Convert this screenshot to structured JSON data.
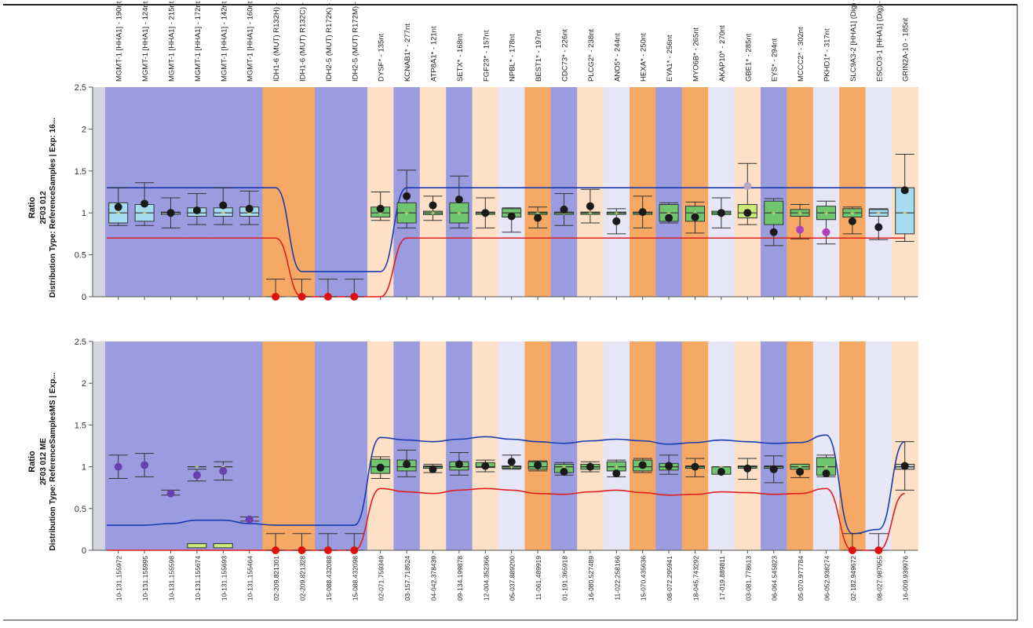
{
  "colors": {
    "blue_band": "#9b9be0",
    "orange_band": "#f6a964",
    "light_orange_band": "#fde0c5",
    "lavender_band": "#e6e6f7",
    "grey_band": "#d3d6db",
    "upper_line": "#1a3bb0",
    "lower_line": "#dd1f1f",
    "dot": "#1a1a1a",
    "zero_dot": "#e01010",
    "box_green": "#6fc66f",
    "box_blue": "#a6dcef",
    "box_yellow": "#c9ea7a",
    "purple_dot": "#6a3fb0",
    "magenta_dot": "#b040b8"
  },
  "chart_data": [
    {
      "type": "box",
      "ylabel": [
        "Ratio",
        "2F03 012",
        "Distribution Type: ReferenceSamples | Exp: 16..."
      ],
      "ylim": [
        0,
        2.5
      ],
      "yticks": [
        "0",
        "0.5",
        "1",
        "1.5",
        "2",
        "2.5"
      ],
      "probe_labels": [
        "MGMT-1 [HHA1] - 190nt",
        "MGMT-1 [HHA1] - 124nt",
        "MGMT-1 [HHA1] - 215nt",
        "MGMT-1 [HHA1] - 172nt",
        "MGMT-1 [HHA1] - 142nt",
        "MGMT-1 [HHA1] - 160nt",
        "IDH1-6 (MUT) R132H) - 203nt",
        "IDH1-6 (MUT) R132C) - 225nt",
        "IDH2-5 (MUT) R172K) - 145nt",
        "IDH2-5 (MUT) R172M) - 151nt",
        "DYSF* - 135nt",
        "KCNAB1* - 277nt",
        "ATP8A1* - 121nt",
        "SETX* - 168nt",
        "FGF23* - 157nt",
        "NPBL* - 178nt",
        "BEST1* - 197nt",
        "CDC73* - 226nt",
        "PLCG2* - 238nt",
        "ANO5* - 244nt",
        "HEXA* - 250nt",
        "EYA1* - 256nt",
        "MYO6B* - 265nt",
        "AKAP10* - 270nt",
        "GBE1* - 285nt",
        "EYS* - 294nt",
        "MCCC2* - 302nt",
        "PKHD1* - 317nt",
        "SLC9A3-2 [HHA1] (Dig) - 208nt",
        "ESCO3-1 [HHA1] (Dig) - 310nt",
        "GRIN2A-10 - 185nt"
      ],
      "bands": [
        "grey",
        "blue",
        "blue",
        "blue",
        "blue",
        "blue",
        "blue",
        "orange",
        "orange",
        "blue",
        "blue",
        "light_orange",
        "blue",
        "light_orange",
        "blue",
        "light_orange",
        "lavender",
        "orange",
        "blue",
        "light_orange",
        "lavender",
        "orange",
        "blue",
        "orange",
        "lavender",
        "light_orange",
        "blue",
        "orange",
        "lavender",
        "orange",
        "lavender",
        "light_orange"
      ],
      "probes": [
        {
          "ratio": 1.07,
          "box": [
            0.88,
            1.12
          ],
          "whisker": [
            0.85,
            1.3
          ],
          "fill": "blue"
        },
        {
          "ratio": 1.11,
          "box": [
            0.9,
            1.1
          ],
          "whisker": [
            0.85,
            1.36
          ],
          "fill": "blue"
        },
        {
          "ratio": 1.0,
          "box": [
            0.99,
            1.01
          ],
          "whisker": [
            0.82,
            1.18
          ],
          "fill": "blue"
        },
        {
          "ratio": 1.03,
          "box": [
            0.96,
            1.06
          ],
          "whisker": [
            0.86,
            1.23
          ],
          "fill": "blue"
        },
        {
          "ratio": 1.09,
          "box": [
            0.96,
            1.06
          ],
          "whisker": [
            0.86,
            1.3
          ],
          "fill": "blue"
        },
        {
          "ratio": 1.05,
          "box": [
            0.96,
            1.07
          ],
          "whisker": [
            0.86,
            1.26
          ],
          "fill": "blue"
        },
        {
          "ratio": 0.0,
          "box": null,
          "whisker": [
            0,
            0.21
          ],
          "fill": "none"
        },
        {
          "ratio": 0.0,
          "box": null,
          "whisker": [
            0,
            0.21
          ],
          "fill": "none"
        },
        {
          "ratio": 0.0,
          "box": null,
          "whisker": [
            0,
            0.21
          ],
          "fill": "none"
        },
        {
          "ratio": 0.0,
          "box": null,
          "whisker": [
            0,
            0.21
          ],
          "fill": "none"
        },
        {
          "ratio": 1.05,
          "box": [
            0.95,
            1.07
          ],
          "whisker": [
            0.91,
            1.25
          ],
          "fill": "green"
        },
        {
          "ratio": 1.2,
          "box": [
            0.88,
            1.12
          ],
          "whisker": [
            0.82,
            1.51
          ],
          "fill": "green"
        },
        {
          "ratio": 1.09,
          "box": [
            0.98,
            1.02
          ],
          "whisker": [
            0.91,
            1.2
          ],
          "fill": "green"
        },
        {
          "ratio": 1.16,
          "box": [
            0.88,
            1.12
          ],
          "whisker": [
            0.82,
            1.44
          ],
          "fill": "green"
        },
        {
          "ratio": 1.0,
          "box": [
            0.99,
            1.01
          ],
          "whisker": [
            0.82,
            1.18
          ],
          "fill": "green"
        },
        {
          "ratio": 0.96,
          "box": [
            0.95,
            1.05
          ],
          "whisker": [
            0.77,
            1.06
          ],
          "fill": "green"
        },
        {
          "ratio": 0.94,
          "box": [
            0.99,
            1.01
          ],
          "whisker": [
            0.82,
            1.07
          ],
          "fill": "green"
        },
        {
          "ratio": 1.04,
          "box": [
            0.99,
            1.01
          ],
          "whisker": [
            0.85,
            1.23
          ],
          "fill": "green"
        },
        {
          "ratio": 1.08,
          "box": [
            0.99,
            1.01
          ],
          "whisker": [
            0.88,
            1.28
          ],
          "fill": "green"
        },
        {
          "ratio": 0.9,
          "box": [
            0.99,
            1.01
          ],
          "whisker": [
            0.75,
            1.05
          ],
          "fill": "green"
        },
        {
          "ratio": 1.01,
          "box": [
            0.99,
            1.01
          ],
          "whisker": [
            0.82,
            1.2
          ],
          "fill": "green"
        },
        {
          "ratio": 0.94,
          "box": [
            0.9,
            1.1
          ],
          "whisker": [
            0.88,
            1.12
          ],
          "fill": "green"
        },
        {
          "ratio": 0.95,
          "box": [
            0.9,
            1.08
          ],
          "whisker": [
            0.76,
            1.13
          ],
          "fill": "green"
        },
        {
          "ratio": 1.0,
          "box": [
            0.98,
            1.02
          ],
          "whisker": [
            0.82,
            1.18
          ],
          "fill": "green"
        },
        {
          "ratio": 1.0,
          "box": [
            0.94,
            1.1
          ],
          "whisker": [
            0.86,
            1.59
          ],
          "fill": "yellow",
          "extra": {
            "ratio": 1.32,
            "color": "grey"
          }
        },
        {
          "ratio": 0.77,
          "box": [
            0.86,
            1.14
          ],
          "whisker": [
            0.61,
            1.17
          ],
          "fill": "green"
        },
        {
          "ratio": 0.8,
          "box": [
            0.96,
            1.04
          ],
          "whisker": [
            0.69,
            1.1
          ],
          "fill": "green",
          "dot_color": "magenta"
        },
        {
          "ratio": 0.77,
          "box": [
            0.92,
            1.08
          ],
          "whisker": [
            0.63,
            1.14
          ],
          "fill": "green",
          "dot_color": "magenta"
        },
        {
          "ratio": 0.9,
          "box": [
            0.95,
            1.05
          ],
          "whisker": [
            0.75,
            1.07
          ],
          "fill": "green"
        },
        {
          "ratio": 0.83,
          "box": [
            0.96,
            1.04
          ],
          "whisker": [
            0.68,
            1.05
          ],
          "fill": "blue"
        },
        {
          "ratio": 1.27,
          "box": [
            0.75,
            1.3
          ],
          "whisker": [
            0.66,
            1.7
          ],
          "fill": "blue"
        }
      ]
    },
    {
      "type": "box",
      "ylabel": [
        "Ratio",
        "2F03 012 ME",
        "Distribution Type: ReferenceSamplesMS | Exp..."
      ],
      "ylim": [
        0,
        2.5
      ],
      "yticks": [
        "0",
        "0.5",
        "1",
        "1.5",
        "2",
        "2.5"
      ],
      "probe_labels": [
        "10-131.155972",
        "10-131.155995",
        "10-131.155598",
        "10-131.155674",
        "10-131.155693",
        "10-131.155464",
        "02-209.821301",
        "02-209.821328",
        "15-088.432088",
        "15-088.432098",
        "02-071.759349",
        "03-157.718524",
        "04-042.378439",
        "09-134.199878",
        "12-004.352366",
        "05-037.889200",
        "11-061.489919",
        "01-191.365918",
        "16-080.527489",
        "11-022.258166",
        "15-070.435636",
        "08-072.295941",
        "18-045.743292",
        "17-019.889811",
        "03-081.778613",
        "06-064.545823",
        "05-070.977784",
        "06-052.938274",
        "02-182.949672",
        "08-027.987955",
        "16-009.939976"
      ],
      "bands": [
        "grey",
        "blue",
        "blue",
        "blue",
        "blue",
        "blue",
        "blue",
        "orange",
        "orange",
        "blue",
        "blue",
        "light_orange",
        "blue",
        "light_orange",
        "blue",
        "light_orange",
        "lavender",
        "orange",
        "blue",
        "light_orange",
        "lavender",
        "orange",
        "blue",
        "orange",
        "lavender",
        "light_orange",
        "blue",
        "orange",
        "lavender",
        "orange",
        "lavender",
        "light_orange"
      ],
      "probes": [
        {
          "ratio": 1.0,
          "box": null,
          "whisker": [
            0.86,
            1.14
          ],
          "fill": "none",
          "dot_color": "purple"
        },
        {
          "ratio": 1.02,
          "box": null,
          "whisker": [
            0.88,
            1.16
          ],
          "fill": "none",
          "dot_color": "purple"
        },
        {
          "ratio": 0.68,
          "box": null,
          "whisker": [
            0.66,
            0.72
          ],
          "fill": "none",
          "dot_color": "purple"
        },
        {
          "ratio": 0.9,
          "box": [
            0.03,
            0.08
          ],
          "whisker": [
            0.83,
            0.97
          ],
          "fill": "yellow",
          "dot_color": "purple"
        },
        {
          "ratio": 0.95,
          "box": [
            0.03,
            0.08
          ],
          "whisker": [
            0.84,
            1.06
          ],
          "fill": "yellow",
          "dot_color": "purple"
        },
        {
          "ratio": 0.37,
          "box": null,
          "whisker": [
            0.35,
            0.4
          ],
          "fill": "none",
          "dot_color": "purple"
        },
        {
          "ratio": 0.0,
          "box": null,
          "whisker": [
            0,
            0.2
          ],
          "fill": "none"
        },
        {
          "ratio": 0.0,
          "box": null,
          "whisker": [
            0,
            0.2
          ],
          "fill": "none"
        },
        {
          "ratio": 0.0,
          "box": null,
          "whisker": [
            0,
            0.2
          ],
          "fill": "none"
        },
        {
          "ratio": 0.0,
          "box": null,
          "whisker": [
            0,
            0.2
          ],
          "fill": "none"
        },
        {
          "ratio": 0.99,
          "box": [
            0.92,
            1.09
          ],
          "whisker": [
            0.86,
            1.12
          ],
          "fill": "green"
        },
        {
          "ratio": 1.03,
          "box": [
            0.95,
            1.08
          ],
          "whisker": [
            0.88,
            1.2
          ],
          "fill": "green"
        },
        {
          "ratio": 0.97,
          "box": [
            0.99,
            1.01
          ],
          "whisker": [
            0.93,
            1.03
          ],
          "fill": "green"
        },
        {
          "ratio": 1.03,
          "box": [
            0.96,
            1.06
          ],
          "whisker": [
            0.9,
            1.17
          ],
          "fill": "green"
        },
        {
          "ratio": 1.01,
          "box": [
            0.99,
            1.05
          ],
          "whisker": [
            0.94,
            1.08
          ],
          "fill": "green"
        },
        {
          "ratio": 1.06,
          "box": [
            0.99,
            1.01
          ],
          "whisker": [
            0.97,
            1.14
          ],
          "fill": "green"
        },
        {
          "ratio": 1.02,
          "box": [
            0.97,
            1.06
          ],
          "whisker": [
            0.95,
            1.07
          ],
          "fill": "green"
        },
        {
          "ratio": 0.94,
          "box": [
            0.93,
            1.03
          ],
          "whisker": [
            0.9,
            1.05
          ],
          "fill": "green"
        },
        {
          "ratio": 1.0,
          "box": [
            0.97,
            1.03
          ],
          "whisker": [
            0.94,
            1.06
          ],
          "fill": "green"
        },
        {
          "ratio": 0.92,
          "box": [
            0.95,
            1.06
          ],
          "whisker": [
            0.88,
            1.08
          ],
          "fill": "green"
        },
        {
          "ratio": 1.02,
          "box": [
            0.95,
            1.08
          ],
          "whisker": [
            0.93,
            1.1
          ],
          "fill": "green"
        },
        {
          "ratio": 1.01,
          "box": [
            0.96,
            1.04
          ],
          "whisker": [
            0.91,
            1.14
          ],
          "fill": "green"
        },
        {
          "ratio": 1.0,
          "box": [
            0.99,
            1.01
          ],
          "whisker": [
            0.88,
            1.1
          ],
          "fill": "green"
        },
        {
          "ratio": 0.94,
          "box": [
            0.91,
            1.0
          ],
          "whisker": [
            0.92,
            0.98
          ],
          "fill": "green"
        },
        {
          "ratio": 0.98,
          "box": [
            0.99,
            1.01
          ],
          "whisker": [
            0.85,
            1.1
          ],
          "fill": "green"
        },
        {
          "ratio": 0.97,
          "box": [
            0.99,
            1.01
          ],
          "whisker": [
            0.81,
            1.13
          ],
          "fill": "green"
        },
        {
          "ratio": 0.94,
          "box": [
            0.97,
            1.03
          ],
          "whisker": [
            0.87,
            1.03
          ],
          "fill": "green"
        },
        {
          "ratio": 0.92,
          "box": [
            0.9,
            1.11
          ],
          "whisker": [
            0.88,
            1.14
          ],
          "fill": "green"
        },
        {
          "ratio": 0.0,
          "box": null,
          "whisker": [
            0,
            0.2
          ],
          "fill": "none"
        },
        {
          "ratio": 0.0,
          "box": null,
          "whisker": [
            0,
            0.2
          ],
          "fill": "none"
        },
        {
          "ratio": 1.01,
          "box": [
            0.97,
            1.03
          ],
          "whisker": [
            0.72,
            1.3
          ],
          "fill": "grey"
        }
      ]
    }
  ],
  "limit_curves": [
    {
      "upper": [
        1.3,
        1.3,
        1.3,
        1.3,
        1.3,
        1.3,
        1.3,
        0.3,
        0.3,
        0.3,
        0.3,
        1.3,
        1.3,
        1.3,
        1.3,
        1.3,
        1.3,
        1.3,
        1.3,
        1.3,
        1.3,
        1.3,
        1.3,
        1.3,
        1.3,
        1.3,
        1.3,
        1.3,
        1.3,
        1.3,
        1.3
      ],
      "lower": [
        0.7,
        0.7,
        0.7,
        0.7,
        0.7,
        0.7,
        0.7,
        0.0,
        0.0,
        0.0,
        0.0,
        0.7,
        0.7,
        0.7,
        0.7,
        0.7,
        0.7,
        0.7,
        0.7,
        0.7,
        0.7,
        0.7,
        0.7,
        0.7,
        0.7,
        0.7,
        0.7,
        0.7,
        0.7,
        0.7,
        0.7
      ]
    },
    {
      "upper": [
        0.3,
        0.3,
        0.32,
        0.36,
        0.36,
        0.32,
        0.3,
        0.3,
        0.3,
        0.3,
        1.35,
        1.32,
        1.3,
        1.33,
        1.36,
        1.33,
        1.3,
        1.28,
        1.31,
        1.33,
        1.31,
        1.27,
        1.29,
        1.32,
        1.3,
        1.28,
        1.29,
        1.38,
        0.2,
        0.25,
        1.3
      ],
      "lower": [
        0.0,
        0.0,
        0.0,
        0.0,
        0.0,
        0.0,
        0.0,
        0.0,
        0.0,
        0.0,
        0.74,
        0.7,
        0.68,
        0.72,
        0.74,
        0.72,
        0.68,
        0.67,
        0.7,
        0.72,
        0.69,
        0.66,
        0.67,
        0.7,
        0.69,
        0.67,
        0.68,
        0.74,
        0.0,
        0.0,
        0.68
      ]
    }
  ]
}
